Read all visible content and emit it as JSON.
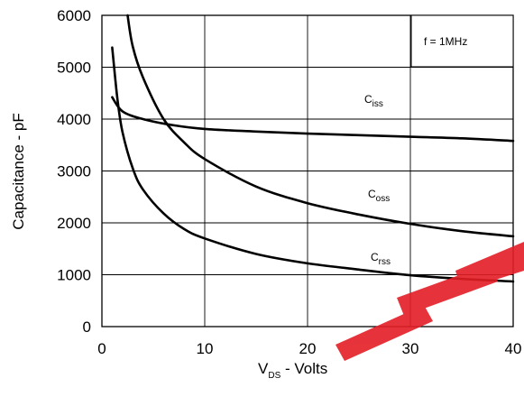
{
  "chart_data": {
    "type": "line",
    "xlabel": {
      "main": "V",
      "sub": "DS",
      "rest": " - Volts"
    },
    "ylabel": "Capacitance - pF",
    "xlim": [
      0,
      40
    ],
    "ylim": [
      0,
      6000
    ],
    "x_ticks": [
      "0",
      "10",
      "20",
      "30",
      "40"
    ],
    "y_ticks": [
      "0",
      "1000",
      "2000",
      "3000",
      "4000",
      "5000",
      "6000"
    ],
    "grid": true,
    "annotation": "f = 1MHz",
    "series": [
      {
        "name": "Ciss",
        "label_main": "C",
        "label_sub": "iss",
        "x": [
          1,
          2,
          4,
          7,
          10,
          15,
          20,
          25,
          30,
          35,
          40
        ],
        "y": [
          4420,
          4150,
          4000,
          3880,
          3810,
          3760,
          3720,
          3690,
          3660,
          3630,
          3580
        ]
      },
      {
        "name": "Coss",
        "label_main": "C",
        "label_sub": "oss",
        "x": [
          2.5,
          3,
          4,
          6,
          8,
          10,
          15,
          20,
          25,
          30,
          35,
          40
        ],
        "y": [
          6000,
          5400,
          4800,
          4000,
          3550,
          3230,
          2700,
          2380,
          2160,
          1980,
          1840,
          1740
        ]
      },
      {
        "name": "Crss",
        "label_main": "C",
        "label_sub": "rss",
        "x": [
          1,
          1.5,
          2,
          3,
          4,
          6,
          8,
          10,
          15,
          20,
          25,
          30,
          35,
          40
        ],
        "y": [
          5380,
          4400,
          3750,
          3050,
          2640,
          2180,
          1880,
          1700,
          1400,
          1220,
          1100,
          990,
          920,
          870
        ]
      }
    ]
  }
}
